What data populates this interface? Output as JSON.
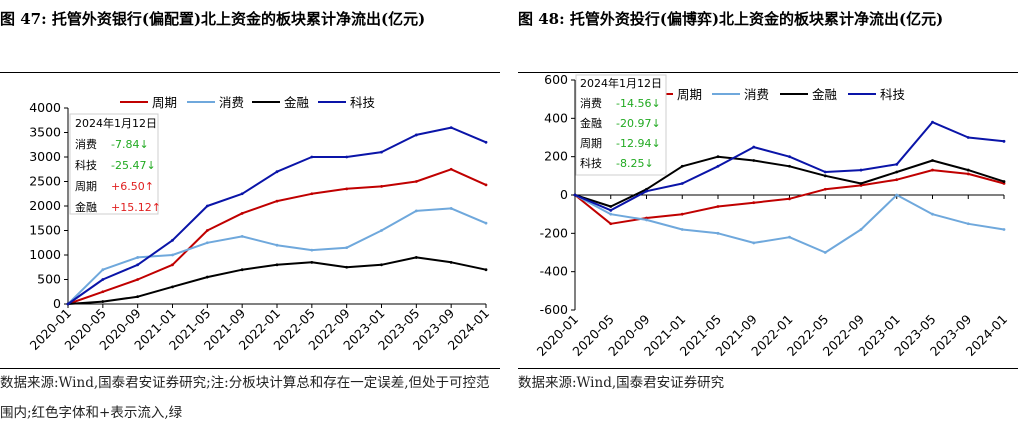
{
  "charts": [
    {
      "figure_title": "图 47: 托管外资银行(偏配置)北上资金的板块累计净流出(亿元)",
      "source_note": "数据来源:Wind,国泰君安证券研究;注:分板块计算总和存在一定误差,但处于可控范围内;红色字体和+表示流入,绿",
      "box": {
        "date": "2024年1月12日"
      },
      "box_rows": [
        {
          "name": "消费",
          "value": "-7.84↓",
          "color": "#22aa22"
        },
        {
          "name": "科技",
          "value": "-25.47↓",
          "color": "#22aa22"
        },
        {
          "name": "周期",
          "value": "+6.50↑",
          "color": "#e02020"
        },
        {
          "name": "金融",
          "value": "+15.12↑",
          "color": "#e02020"
        }
      ]
    },
    {
      "figure_title": "图 48: 托管外资投行(偏博弈)北上资金的板块累计净流出(亿元)",
      "source_note": "数据来源:Wind,国泰君安证券研究",
      "box": {
        "date": "2024年1月12日"
      },
      "box_rows": [
        {
          "name": "消费",
          "value": "-14.56↓",
          "color": "#22aa22"
        },
        {
          "name": "金融",
          "value": "-20.97↓",
          "color": "#22aa22"
        },
        {
          "name": "周期",
          "value": "-12.94↓",
          "color": "#22aa22"
        },
        {
          "name": "科技",
          "value": "-8.25↓",
          "color": "#22aa22"
        }
      ]
    }
  ],
  "chart_data": [
    {
      "type": "line",
      "x": [
        "2020-01",
        "2020-05",
        "2020-09",
        "2021-01",
        "2021-05",
        "2021-09",
        "2022-01",
        "2022-05",
        "2022-09",
        "2023-01",
        "2023-05",
        "2023-09",
        "2024-01"
      ],
      "xlabels": [
        "2020-01",
        "2020-05",
        "2020-09",
        "2021-01",
        "2021-05",
        "2021-09",
        "2022-01",
        "2022-05",
        "2022-09",
        "2023-01",
        "2023-05",
        "2023-09",
        "2024-01"
      ],
      "ylim": [
        0,
        4000
      ],
      "yticks": [
        0,
        500,
        1000,
        1500,
        2000,
        2500,
        3000,
        3500,
        4000
      ],
      "series": [
        {
          "name": "周期",
          "color": "#c00000",
          "values": [
            0,
            250,
            500,
            800,
            1500,
            1850,
            2100,
            2250,
            2350,
            2400,
            2500,
            2750,
            2430
          ]
        },
        {
          "name": "消费",
          "color": "#6fa8dc",
          "values": [
            0,
            700,
            950,
            1000,
            1250,
            1380,
            1200,
            1100,
            1150,
            1500,
            1900,
            1950,
            1650
          ]
        },
        {
          "name": "金融",
          "color": "#000000",
          "values": [
            0,
            50,
            150,
            350,
            550,
            700,
            800,
            850,
            750,
            800,
            950,
            850,
            700
          ]
        },
        {
          "name": "科技",
          "color": "#0a14a8",
          "values": [
            0,
            500,
            800,
            1300,
            2000,
            2250,
            2700,
            3000,
            3000,
            3100,
            3450,
            3600,
            3300
          ]
        }
      ]
    },
    {
      "type": "line",
      "x": [
        "2020-01",
        "2020-05",
        "2020-09",
        "2021-01",
        "2021-05",
        "2021-09",
        "2022-01",
        "2022-05",
        "2022-09",
        "2023-01",
        "2023-05",
        "2023-09",
        "2024-01"
      ],
      "xlabels": [
        "2020-01",
        "2020-05",
        "2020-09",
        "2021-01",
        "2021-05",
        "2021-09",
        "2022-01",
        "2022-05",
        "2022-09",
        "2023-01",
        "2023-05",
        "2023-09",
        "2024-01"
      ],
      "ylim": [
        -600,
        600
      ],
      "yticks": [
        -600,
        -400,
        -200,
        0,
        200,
        400,
        600
      ],
      "series": [
        {
          "name": "周期",
          "color": "#c00000",
          "values": [
            0,
            -150,
            -120,
            -100,
            -60,
            -40,
            -20,
            30,
            50,
            80,
            130,
            110,
            60
          ]
        },
        {
          "name": "消费",
          "color": "#6fa8dc",
          "values": [
            0,
            -100,
            -130,
            -180,
            -200,
            -250,
            -220,
            -300,
            -180,
            0,
            -100,
            -150,
            -180
          ]
        },
        {
          "name": "金融",
          "color": "#000000",
          "values": [
            0,
            -60,
            30,
            150,
            200,
            180,
            150,
            100,
            60,
            120,
            180,
            130,
            70
          ]
        },
        {
          "name": "科技",
          "color": "#0a14a8",
          "values": [
            0,
            -80,
            20,
            60,
            150,
            250,
            200,
            120,
            130,
            160,
            380,
            300,
            280
          ]
        }
      ]
    }
  ]
}
